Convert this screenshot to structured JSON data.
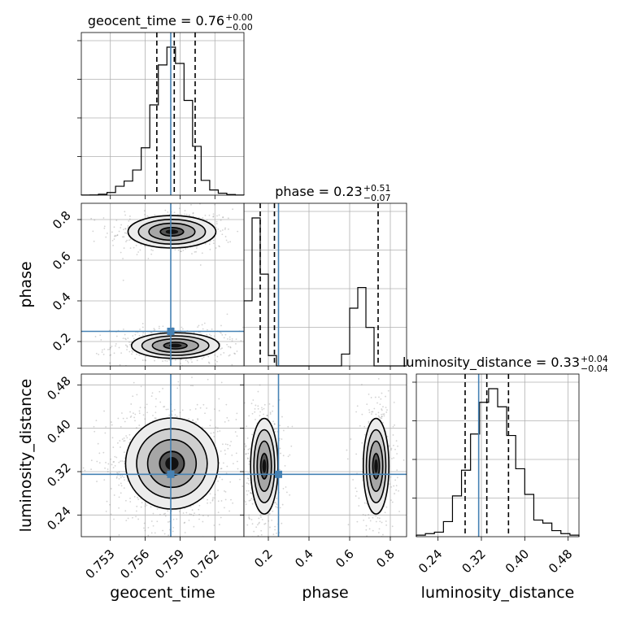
{
  "chart_data": {
    "type": "corner",
    "grid": true,
    "truth_color": "#4682b4",
    "hist_color": "#000000",
    "parameters": [
      {
        "name": "geocent_time",
        "label": "geocent_time",
        "range": [
          0.7505,
          0.7645
        ],
        "ticks": [
          0.753,
          0.756,
          0.759,
          0.762
        ],
        "tick_labels": [
          "0.753",
          "0.756",
          "0.759",
          "0.762"
        ],
        "title_prefix": "geocent_time = 0.76",
        "title_plus": "+0.00",
        "title_minus": "−0.00",
        "quantiles": [
          0.757,
          0.7585,
          0.7603
        ],
        "truth": 0.7582,
        "hist_bins": [
          0.0005,
          0.0015,
          0.006,
          0.018,
          0.06,
          0.095,
          0.17,
          0.32,
          0.61,
          0.88,
          1.0,
          0.89,
          0.64,
          0.33,
          0.1,
          0.035,
          0.013,
          0.004,
          0.001
        ]
      },
      {
        "name": "phase",
        "label": "phase",
        "range": [
          0.08,
          0.88
        ],
        "ticks": [
          0.2,
          0.4,
          0.6,
          0.8
        ],
        "tick_labels": [
          "0.2",
          "0.4",
          "0.6",
          "0.8"
        ],
        "title_prefix": "phase = 0.23",
        "title_plus": "+0.51",
        "title_minus": "−0.07",
        "quantiles": [
          0.16,
          0.23,
          0.74
        ],
        "truth": 0.25,
        "hist_bins": [
          0.44,
          1.0,
          0.62,
          0.07,
          0,
          0,
          0,
          0,
          0,
          0,
          0,
          0,
          0.08,
          0.39,
          0.53,
          0.26,
          0,
          0,
          0,
          0
        ]
      },
      {
        "name": "luminosity_distance",
        "label": "luminosity_distance",
        "range": [
          0.2,
          0.5
        ],
        "ticks": [
          0.24,
          0.32,
          0.4,
          0.48
        ],
        "tick_labels": [
          "0.24",
          "0.32",
          "0.40",
          "0.48"
        ],
        "title_prefix": "luminosity_distance = 0.33",
        "title_plus": "+0.04",
        "title_minus": "−0.04",
        "quantiles": [
          0.29,
          0.33,
          0.37
        ],
        "truth": 0.315,
        "hist_bins": [
          0.01,
          0.02,
          0.03,
          0.1,
          0.27,
          0.44,
          0.68,
          0.89,
          0.98,
          0.86,
          0.67,
          0.45,
          0.28,
          0.11,
          0.09,
          0.04,
          0.02,
          0.01
        ]
      }
    ],
    "pair_panels": [
      {
        "x": "geocent_time",
        "y": "phase",
        "modes": [
          {
            "cx": 0.7583,
            "cy": 0.74,
            "sx": 0.0018,
            "sy": 0.038,
            "weight": 0.45,
            "shift_y": 0.0
          },
          {
            "cx": 0.7586,
            "cy": 0.18,
            "sx": 0.0018,
            "sy": 0.03,
            "weight": 0.55,
            "shift_y": 0.0
          }
        ]
      },
      {
        "x": "geocent_time",
        "y": "luminosity_distance",
        "modes": [
          {
            "cx": 0.7583,
            "cy": 0.335,
            "sx": 0.0019,
            "sy": 0.04,
            "weight": 1.0,
            "shift_y": 0.0
          }
        ]
      },
      {
        "x": "phase",
        "y": "luminosity_distance",
        "modes": [
          {
            "cx": 0.18,
            "cy": 0.33,
            "sx": 0.032,
            "sy": 0.042,
            "weight": 0.55,
            "shift_y": 0.0
          },
          {
            "cx": 0.73,
            "cy": 0.33,
            "sx": 0.03,
            "sy": 0.042,
            "weight": 0.45,
            "shift_y": 0.0
          }
        ]
      }
    ]
  }
}
